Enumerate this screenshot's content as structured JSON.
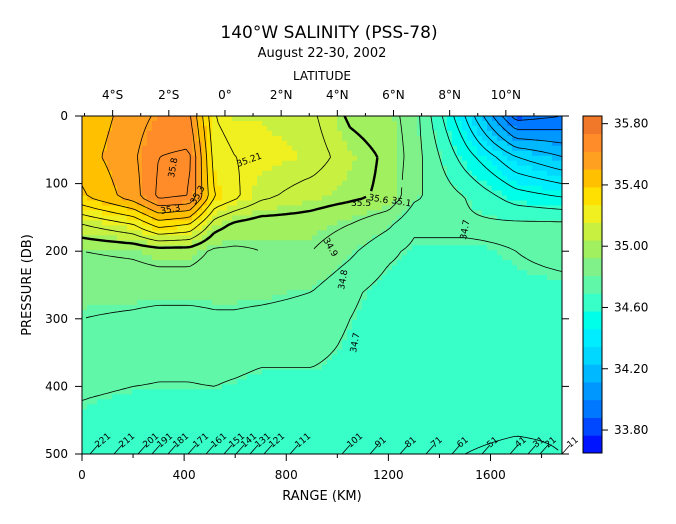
{
  "chart_data": {
    "type": "heatmap",
    "title": "140°W SALINITY (PSS-78)",
    "subtitle": "August 22-30, 2002",
    "top_axis_title": "LATITUDE",
    "xlabel": "RANGE (KM)",
    "ylabel": "PRESSURE (DB)",
    "xlim": [
      0,
      1880
    ],
    "ylim": [
      500,
      0
    ],
    "x_ticks": [
      0,
      400,
      800,
      1200,
      1600
    ],
    "x_tick_labels": [
      "0",
      "400",
      "800",
      "1200",
      "1600"
    ],
    "y_ticks": [
      0,
      100,
      200,
      300,
      400,
      500
    ],
    "y_tick_labels": [
      "0",
      "100",
      "200",
      "300",
      "400",
      "500"
    ],
    "latitude_ticks": [
      {
        "label": "4°S",
        "km": 120
      },
      {
        "label": "2°S",
        "km": 340
      },
      {
        "label": "0°",
        "km": 560
      },
      {
        "label": "2°N",
        "km": 780
      },
      {
        "label": "4°N",
        "km": 1000
      },
      {
        "label": "6°N",
        "km": 1220
      },
      {
        "label": "8°N",
        "km": 1440
      },
      {
        "label": "10°N",
        "km": 1660
      }
    ],
    "colorbar": {
      "min": 33.65,
      "max": 35.85,
      "tick_values": [
        35.8,
        35.4,
        35.0,
        34.6,
        34.2,
        33.8
      ],
      "tick_labels": [
        "35.80",
        "35.40",
        "35.00",
        "34.60",
        "34.20",
        "33.80"
      ],
      "palette": [
        "#0014ff",
        "#0048ff",
        "#0078ff",
        "#0098ff",
        "#00b8ff",
        "#00d8ff",
        "#00ecff",
        "#00ffe8",
        "#38ffc8",
        "#60f8a8",
        "#80f088",
        "#a0f060",
        "#c8f040",
        "#f0f020",
        "#ffe000",
        "#ffc000",
        "#ffa020",
        "#ff8c28",
        "#f07828"
      ]
    },
    "contour_labels": [
      "35.8",
      "35.21",
      "35.3",
      "35.3",
      "35.5",
      "35.6",
      "35.1",
      "34.9",
      "34.8",
      "34.7",
      "34.7"
    ],
    "station_labels": [
      "221",
      "211",
      "201",
      "191",
      "181",
      "171",
      "161",
      "151",
      "141",
      "131",
      "121",
      "111",
      "101",
      "91",
      "81",
      "71",
      "61",
      "51",
      "41",
      "31",
      "21",
      "11"
    ],
    "salinity_grid": {
      "x_km": [
        0,
        200,
        300,
        420,
        520,
        600,
        700,
        900,
        1050,
        1200,
        1300,
        1500,
        1700,
        1880
      ],
      "pressure": [
        0,
        60,
        120,
        160,
        200,
        260,
        340,
        420,
        500
      ],
      "values": [
        [
          35.42,
          35.55,
          35.62,
          35.62,
          35.2,
          35.15,
          35.15,
          35.12,
          34.98,
          34.94,
          34.85,
          34.4,
          33.85,
          33.9
        ],
        [
          35.45,
          35.58,
          35.7,
          35.72,
          35.25,
          35.2,
          35.18,
          35.15,
          35.05,
          34.98,
          34.85,
          34.55,
          34.3,
          34.2
        ],
        [
          35.38,
          35.55,
          35.72,
          35.7,
          35.3,
          35.22,
          35.12,
          35.05,
          35.02,
          34.98,
          34.82,
          34.7,
          34.55,
          34.5
        ],
        [
          35.1,
          35.2,
          35.35,
          35.3,
          35.05,
          34.98,
          34.95,
          34.95,
          34.9,
          34.82,
          34.72,
          34.72,
          34.72,
          34.72
        ],
        [
          34.9,
          34.92,
          34.95,
          34.95,
          34.88,
          34.88,
          34.9,
          34.9,
          34.82,
          34.72,
          34.68,
          34.68,
          34.7,
          34.72
        ],
        [
          34.82,
          34.82,
          34.82,
          34.82,
          34.82,
          34.82,
          34.82,
          34.8,
          34.72,
          34.66,
          34.66,
          34.66,
          34.68,
          34.68
        ],
        [
          34.78,
          34.76,
          34.74,
          34.74,
          34.76,
          34.76,
          34.74,
          34.74,
          34.68,
          34.64,
          34.64,
          34.64,
          34.64,
          34.64
        ],
        [
          34.7,
          34.68,
          34.68,
          34.68,
          34.68,
          34.66,
          34.64,
          34.64,
          34.64,
          34.64,
          34.64,
          34.64,
          34.64,
          34.62
        ],
        [
          34.66,
          34.64,
          34.64,
          34.64,
          34.64,
          34.64,
          34.64,
          34.64,
          34.64,
          34.64,
          34.62,
          34.6,
          34.58,
          34.6
        ]
      ]
    }
  }
}
